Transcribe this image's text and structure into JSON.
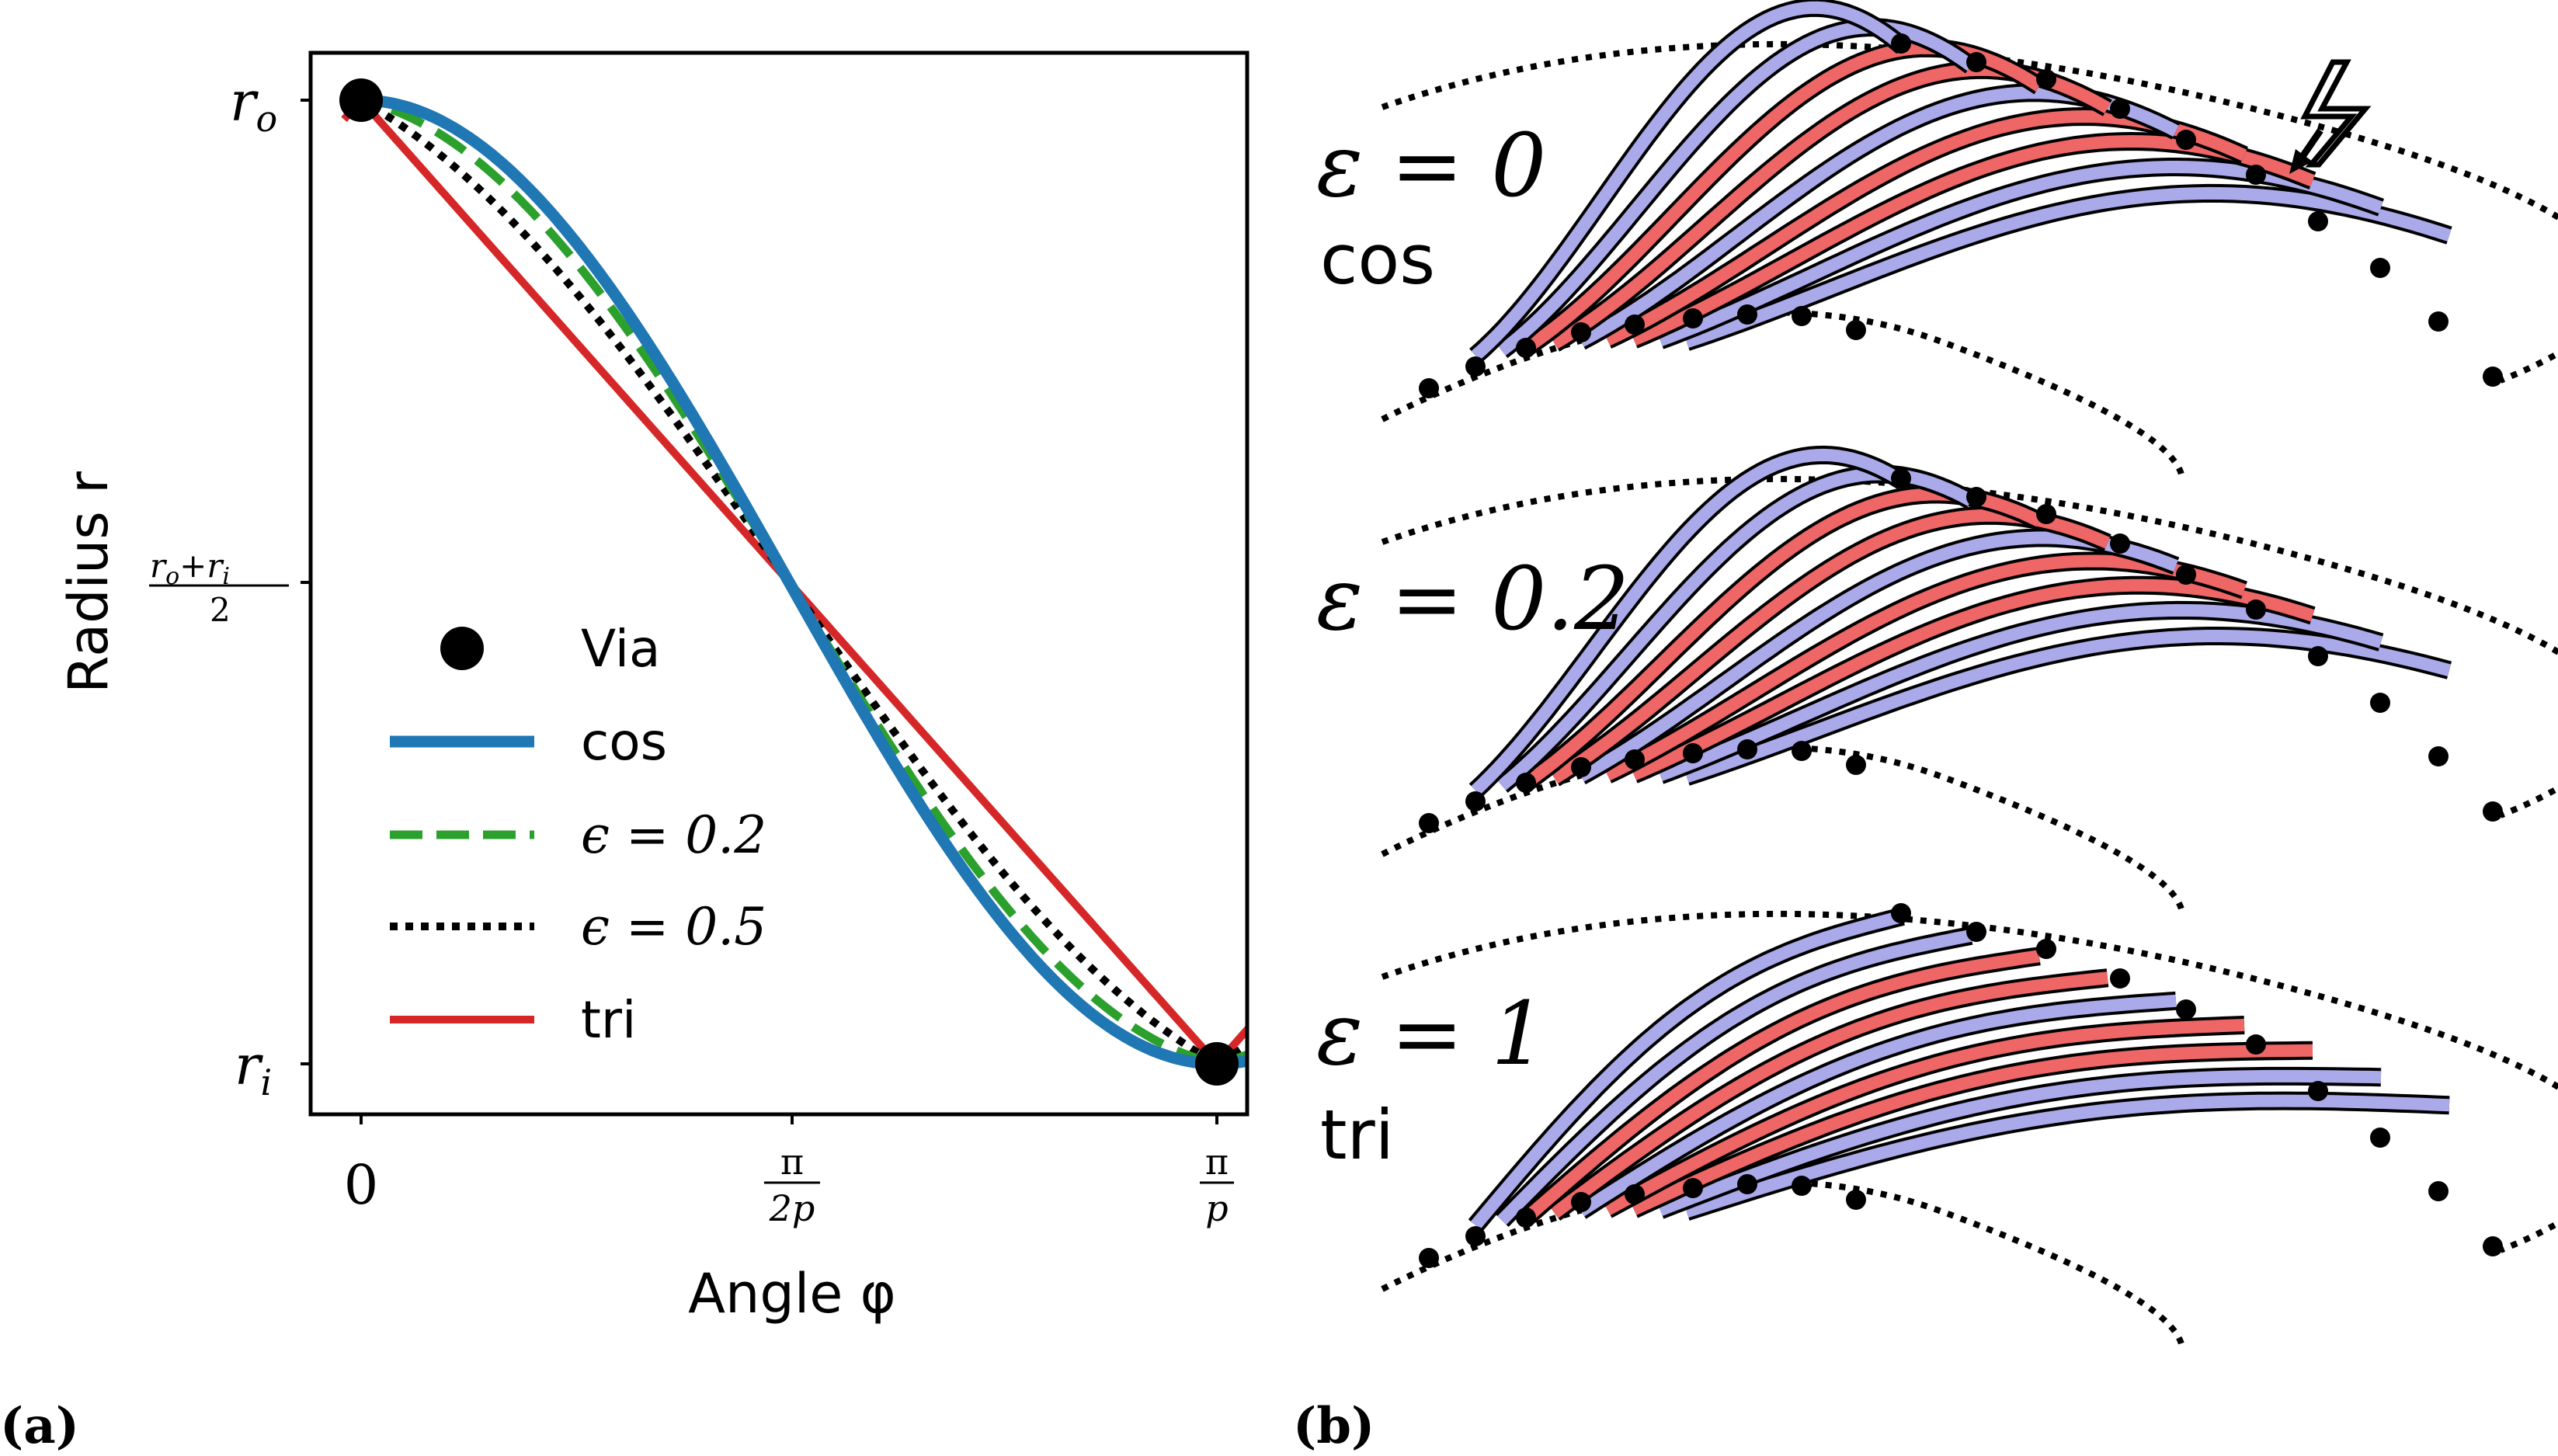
{
  "panel_a_label": "(a)",
  "panel_b_label": "(b)",
  "chart_data": {
    "type": "line",
    "xlabel": "Angle φ",
    "ylabel": "Radius r",
    "x_ticks": [
      "0",
      "π/2p",
      "π/p"
    ],
    "y_ticks": [
      "r_o",
      "(r_o+r_i)/2",
      "r_i"
    ],
    "xlim": [
      -0.05,
      1.07
    ],
    "ylim": [
      -0.05,
      1.05
    ],
    "x_unit_note": "x in units of π/p, y normalized 0 = r_i, 1 = r_o",
    "legend_position": "lower-left",
    "legend": [
      "Via",
      "cos",
      "ϵ = 0.2",
      "ϵ = 0.5",
      "tri"
    ],
    "vias": [
      {
        "x": 0,
        "y": 1
      },
      {
        "x": 1,
        "y": 0
      }
    ],
    "series": [
      {
        "name": "cos",
        "color": "#1f77b4",
        "style": "solid",
        "epsilon": 0
      },
      {
        "name": "ϵ = 0.2",
        "color": "#2ca02c",
        "style": "dashed",
        "epsilon": 0.2
      },
      {
        "name": "ϵ = 0.5",
        "color": "#000000",
        "style": "dotted",
        "epsilon": 0.5
      },
      {
        "name": "tri",
        "color": "#d62728",
        "style": "solid",
        "epsilon": 1
      }
    ]
  },
  "panel_b": {
    "colors": {
      "blue": "#aaaaea",
      "red": "#ee6666"
    },
    "rows": [
      {
        "eps_label": "ε = 0",
        "func_label": "cos",
        "epsilon": 0
      },
      {
        "eps_label": "ε = 0.2",
        "func_label": "",
        "epsilon": 0.2
      },
      {
        "eps_label": "ε = 1",
        "func_label": "tri",
        "epsilon": 1
      }
    ],
    "warning_icon": "lightning-icon"
  }
}
